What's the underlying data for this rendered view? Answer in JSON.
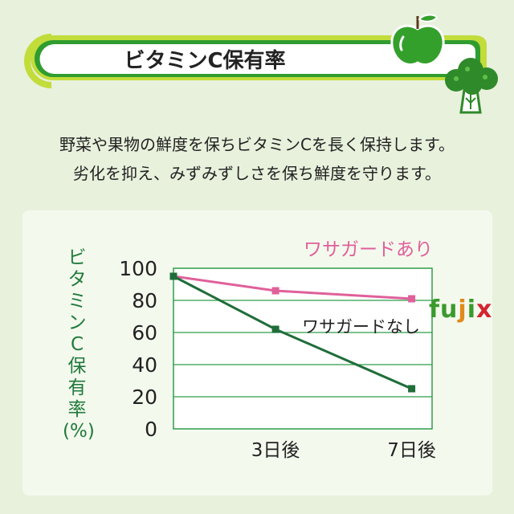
{
  "header": {
    "title": "ビタミンC保有率"
  },
  "intro": {
    "line1": "野菜や果物の鮮度を保ちビタミンCを長く保持します。",
    "line2": "劣化を抑え、みずみずしさを保ち鮮度を守ります。"
  },
  "brand": {
    "parts": [
      "fu",
      "j",
      "i",
      "x"
    ]
  },
  "icons": [
    "apple-icon",
    "broccoli-icon"
  ],
  "colors": {
    "with_series": "#e0609a",
    "without_series": "#1f6e3a",
    "grid": "#2f9d4a",
    "accent_green": "#2f9d2f",
    "lime": "#c2dc3a"
  },
  "chart_data": {
    "type": "line",
    "ylabel_chars": [
      "ビ",
      "タ",
      "ミ",
      "ン",
      "C",
      "保",
      "有",
      "率",
      "(%)"
    ],
    "y_ticks": [
      "100",
      "80",
      "60",
      "40",
      "20",
      "0"
    ],
    "ylim": [
      0,
      100
    ],
    "x_tick_labels": [
      "3日後",
      "7日後"
    ],
    "x": [
      0,
      3,
      7
    ],
    "series": [
      {
        "name": "ワサガードあり",
        "values": [
          95,
          86,
          81
        ]
      },
      {
        "name": "ワサガードなし",
        "values": [
          95,
          62,
          25
        ]
      }
    ],
    "grid": true
  }
}
